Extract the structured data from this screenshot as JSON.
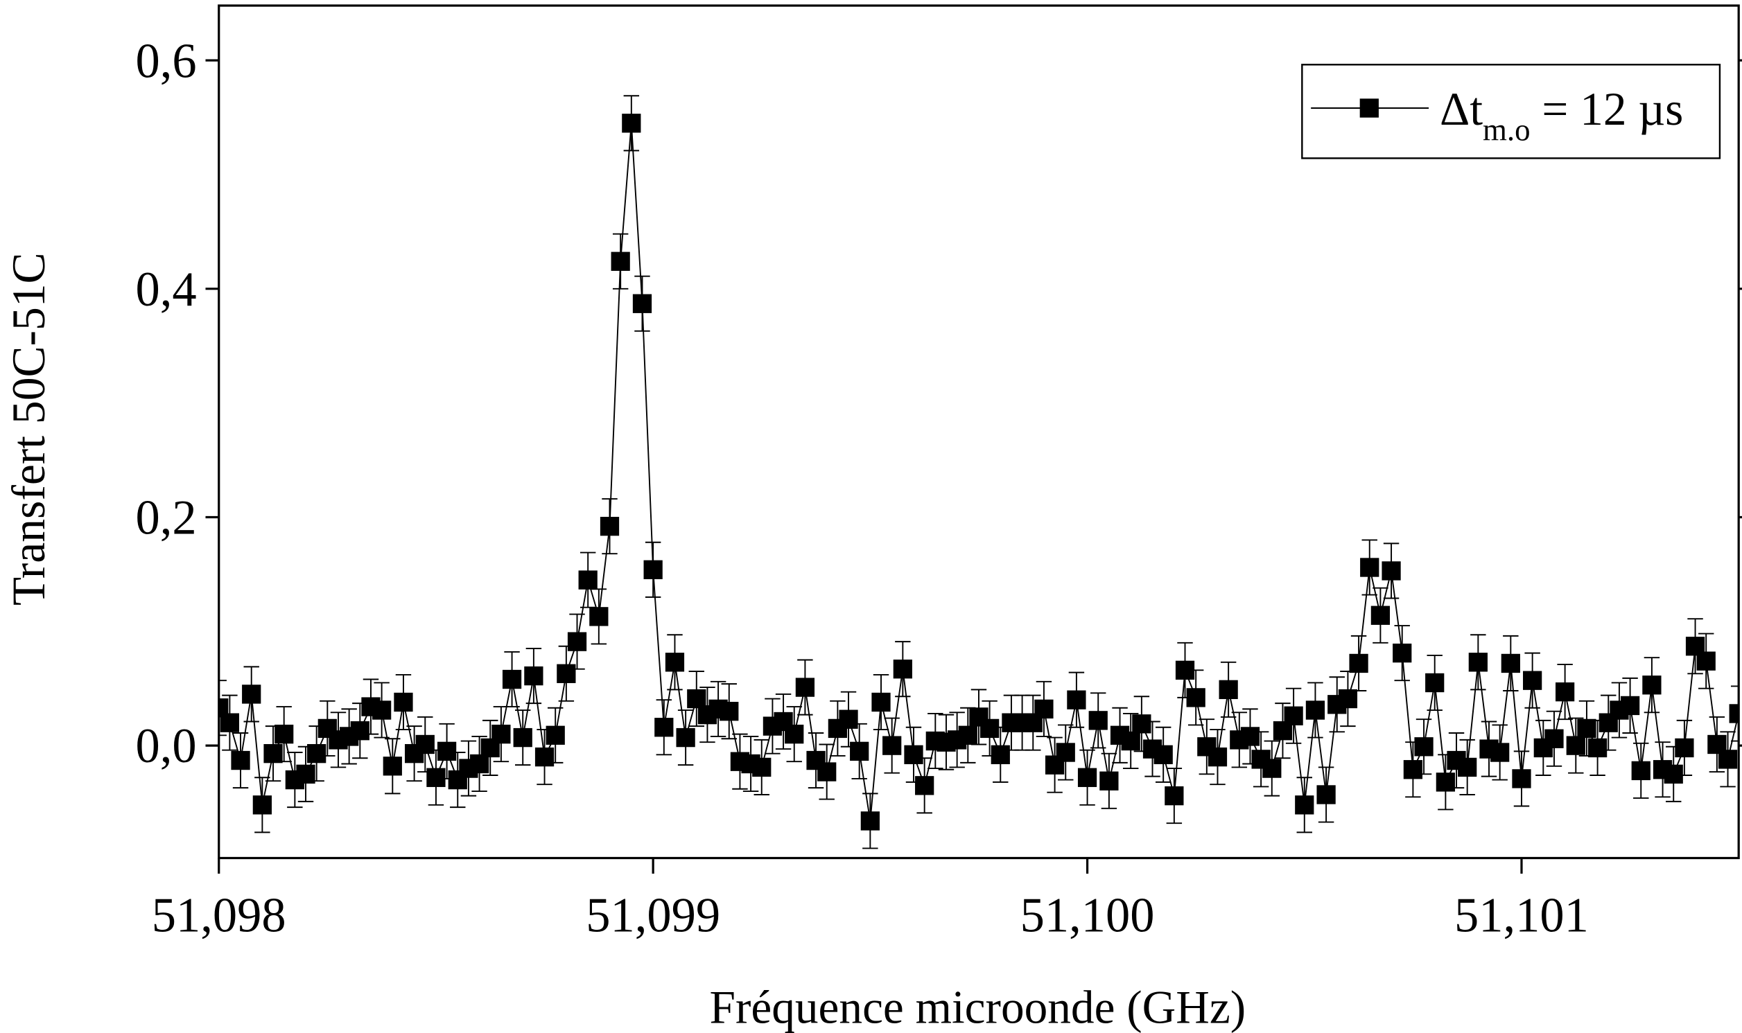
{
  "chart_data": {
    "type": "line",
    "xlabel": "Fréquence microonde (GHz)",
    "ylabel": "Transfert 50C-51C",
    "legend": {
      "label": "Δt",
      "subscript": "m.o",
      "suffix": " = 12 µs"
    },
    "legend_position": "upper right",
    "color": "#000000",
    "error": 0.024,
    "xlim": [
      51.098,
      51.1015
    ],
    "ylim": [
      -0.0985,
      0.648
    ],
    "xticks": [
      {
        "value": 51.098,
        "label": "51,098"
      },
      {
        "value": 51.099,
        "label": "51,099"
      },
      {
        "value": 51.1,
        "label": "51,100"
      },
      {
        "value": 51.101,
        "label": "51,101"
      }
    ],
    "yticks": [
      {
        "value": 0,
        "label": "0,0"
      },
      {
        "value": 0.2,
        "label": "0,2"
      },
      {
        "value": 0.4,
        "label": "0,4"
      },
      {
        "value": 0.6,
        "label": "0,6"
      }
    ],
    "x": [
      51.098,
      51.098025,
      51.09805,
      51.098075,
      51.0981,
      51.098125,
      51.09815,
      51.098175,
      51.0982,
      51.098225,
      51.09825,
      51.098275,
      51.0983,
      51.098325,
      51.09835,
      51.098375,
      51.0984,
      51.098425,
      51.09845,
      51.098475,
      51.0985,
      51.098525,
      51.09855,
      51.098575,
      51.0986,
      51.098625,
      51.09865,
      51.098675,
      51.0987,
      51.098725,
      51.09875,
      51.098775,
      51.0988,
      51.098825,
      51.09885,
      51.098875,
      51.0989,
      51.098925,
      51.09895,
      51.098975,
      51.099,
      51.099025,
      51.09905,
      51.099075,
      51.0991,
      51.099125,
      51.09915,
      51.099175,
      51.0992,
      51.099225,
      51.09925,
      51.099275,
      51.0993,
      51.099325,
      51.09935,
      51.099375,
      51.0994,
      51.099425,
      51.09945,
      51.099475,
      51.0995,
      51.099525,
      51.09955,
      51.099575,
      51.0996,
      51.099625,
      51.09965,
      51.099675,
      51.0997,
      51.099725,
      51.09975,
      51.099775,
      51.0998,
      51.099825,
      51.09985,
      51.099875,
      51.0999,
      51.099925,
      51.09995,
      51.099975,
      51.1,
      51.100025,
      51.10005,
      51.100075,
      51.1001,
      51.100125,
      51.10015,
      51.100175,
      51.1002,
      51.100225,
      51.10025,
      51.100275,
      51.1003,
      51.100325,
      51.10035,
      51.100375,
      51.1004,
      51.100425,
      51.10045,
      51.100475,
      51.1005,
      51.100525,
      51.10055,
      51.100575,
      51.1006,
      51.100625,
      51.10065,
      51.100675,
      51.1007,
      51.100725,
      51.10075,
      51.100775,
      51.1008,
      51.100825,
      51.10085,
      51.100875,
      51.1009,
      51.100925,
      51.10095,
      51.100975,
      51.101,
      51.101025,
      51.10105,
      51.101075,
      51.1011,
      51.101125,
      51.10115,
      51.101175,
      51.1012,
      51.101225,
      51.10125,
      51.101275,
      51.1013,
      51.101325,
      51.10135,
      51.101375,
      51.1014,
      51.101425,
      51.10145,
      51.101475,
      51.1015
    ],
    "values": [
      0.033,
      0.02,
      -0.013,
      0.045,
      -0.052,
      -0.007,
      0.01,
      -0.03,
      -0.025,
      -0.007,
      0.015,
      0.005,
      0.008,
      0.013,
      0.034,
      0.031,
      -0.018,
      0.038,
      -0.007,
      0.001,
      -0.028,
      -0.005,
      -0.03,
      -0.02,
      -0.016,
      -0.002,
      0.01,
      0.058,
      0.007,
      0.061,
      -0.01,
      0.009,
      0.063,
      0.091,
      0.145,
      0.113,
      0.192,
      0.424,
      0.545,
      0.387,
      0.154,
      0.016,
      0.073,
      0.007,
      0.041,
      0.027,
      0.032,
      0.03,
      -0.014,
      -0.016,
      -0.019,
      0.017,
      0.021,
      0.01,
      0.051,
      -0.013,
      -0.023,
      0.015,
      0.023,
      -0.005,
      -0.066,
      0.038,
      0,
      0.067,
      -0.008,
      -0.035,
      0.004,
      0.003,
      0.005,
      0.009,
      0.025,
      0.015,
      -0.008,
      0.02,
      0.02,
      0.02,
      0.032,
      -0.017,
      -0.006,
      0.04,
      -0.028,
      0.022,
      -0.031,
      0.009,
      0.004,
      0.019,
      -0.003,
      -0.008,
      -0.044,
      0.066,
      0.042,
      -0.001,
      -0.01,
      0.049,
      0.005,
      0.008,
      -0.012,
      -0.02,
      0.013,
      0.026,
      -0.052,
      0.031,
      -0.043,
      0.036,
      0.041,
      0.072,
      0.156,
      0.114,
      0.153,
      0.081,
      -0.021,
      -0.001,
      0.055,
      -0.032,
      -0.013,
      -0.019,
      0.073,
      -0.003,
      -0.006,
      0.072,
      -0.029,
      0.057,
      -0.002,
      0.006,
      0.047,
      0,
      0.015,
      -0.002,
      0.02,
      0.031,
      0.035,
      -0.022,
      0.053,
      -0.021,
      -0.025,
      -0.002,
      0.087,
      0.074,
      0.001,
      -0.012,
      0.028
    ]
  }
}
